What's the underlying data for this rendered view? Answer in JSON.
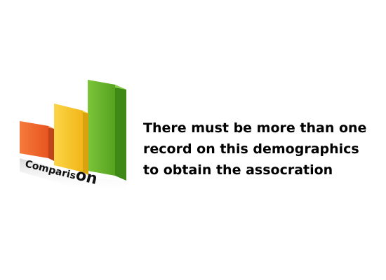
{
  "logo": {
    "icon": "comparison-bar-chart-icon",
    "word_lead": "Comparis",
    "word_tail": "on",
    "colors": {
      "bar_left_front": "#f26a2e",
      "bar_left_top": "#f58a55",
      "bar_left_side": "#c0441b",
      "bar_mid_front": "#f7c92e",
      "bar_mid_top": "#fad865",
      "bar_mid_side": "#d9a30f",
      "bar_right_front": "#6ab42d",
      "bar_right_top": "#8ccf4c",
      "bar_right_side": "#3f8a16"
    }
  },
  "message": {
    "lines": [
      "There must be more than one",
      "record on this demographics",
      "to obtain the assocration"
    ]
  }
}
